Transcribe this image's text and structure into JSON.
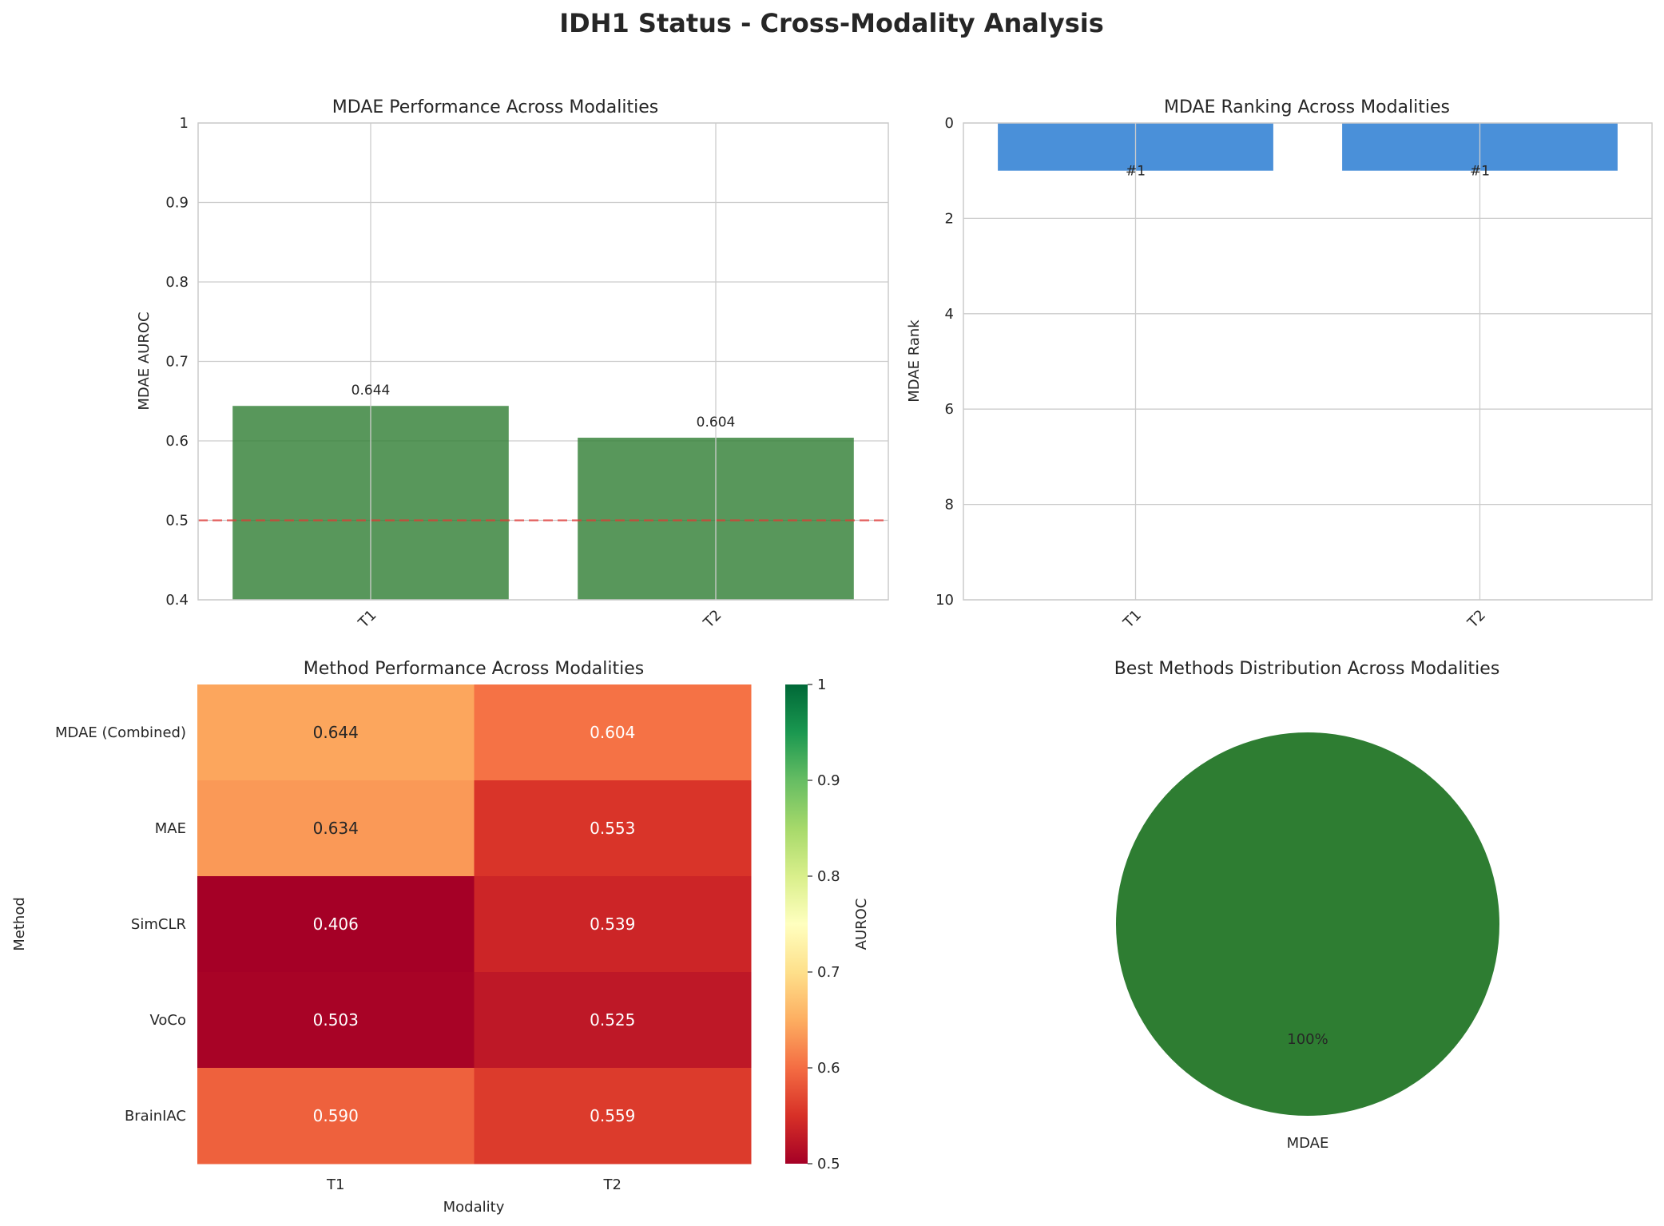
{
  "figure": {
    "title": "IDH1 Status - Cross-Modality Analysis"
  },
  "chart_data": [
    {
      "type": "bar",
      "title": "MDAE Performance Across Modalities",
      "xlabel": "",
      "ylabel": "MDAE AUROC",
      "categories": [
        "T1",
        "T2"
      ],
      "values": [
        0.644,
        0.604
      ],
      "data_labels": [
        "0.644",
        "0.604"
      ],
      "ylim": [
        0.4,
        1.0
      ],
      "yticks": [
        0.4,
        0.5,
        0.6,
        0.7,
        0.8,
        0.9,
        1.0
      ],
      "reference_line": 0.5,
      "bar_color": "#2e7d32",
      "reference_color": "#e53935",
      "grid": true
    },
    {
      "type": "bar",
      "title": "MDAE Ranking Across Modalities",
      "xlabel": "",
      "ylabel": "MDAE Rank",
      "categories": [
        "T1",
        "T2"
      ],
      "values": [
        1,
        1
      ],
      "data_labels": [
        "#1",
        "#1"
      ],
      "ylim": [
        10,
        0
      ],
      "inverted_y": true,
      "yticks": [
        0,
        2,
        4,
        6,
        8,
        10
      ],
      "bar_color": "#4a90d9",
      "grid": true
    },
    {
      "type": "heatmap",
      "title": "Method Performance Across Modalities",
      "xlabel": "Modality",
      "ylabel": "Method",
      "x": [
        "T1",
        "T2"
      ],
      "y": [
        "MDAE (Combined)",
        "MAE",
        "SimCLR",
        "VoCo",
        "BrainIAC"
      ],
      "values": [
        [
          0.644,
          0.604
        ],
        [
          0.634,
          0.553
        ],
        [
          0.406,
          0.539
        ],
        [
          0.503,
          0.525
        ],
        [
          0.59,
          0.559
        ]
      ],
      "cell_labels": [
        [
          "0.644",
          "0.604"
        ],
        [
          "0.634",
          "0.553"
        ],
        [
          "0.406",
          "0.539"
        ],
        [
          "0.503",
          "0.525"
        ],
        [
          "0.590",
          "0.559"
        ]
      ],
      "colorscale": "RdYlGn",
      "vmin": 0.5,
      "vmax": 1.0,
      "colorbar_label": "AUROC",
      "colorbar_ticks": [
        0.5,
        0.6,
        0.7,
        0.8,
        0.9,
        1.0
      ]
    },
    {
      "type": "pie",
      "title": "Best Methods Distribution Across Modalities",
      "labels": [
        "MDAE"
      ],
      "values": [
        100
      ],
      "pct_labels": [
        "100%"
      ],
      "colors": [
        "#2e7d32"
      ]
    }
  ]
}
